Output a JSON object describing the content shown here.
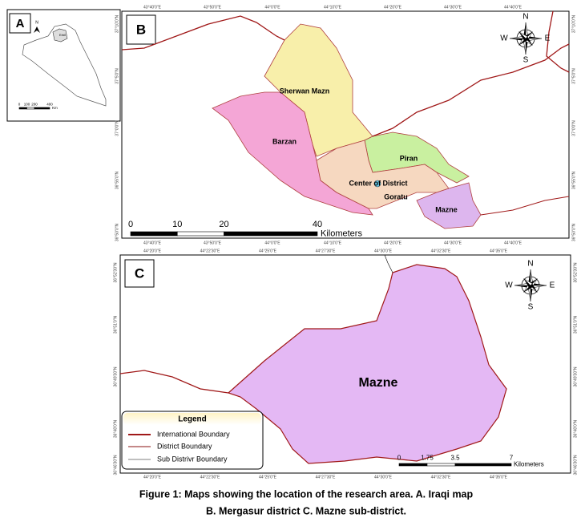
{
  "panel_a": {
    "label": "A",
    "north": "N",
    "city": "Erbil",
    "scale": [
      "0",
      "100",
      "200",
      "400"
    ],
    "scale_unit": "Km"
  },
  "panel_b": {
    "label": "B",
    "districts": [
      "Sherwan Mazn",
      "Barzan",
      "Piran",
      "Center of District",
      "Goratu",
      "Mazne"
    ],
    "compass": {
      "n": "N",
      "e": "E",
      "s": "S",
      "w": "W"
    },
    "scale": [
      "0",
      "10",
      "20",
      "40"
    ],
    "scale_unit": "Kilometers",
    "lon_labels": [
      "43°40'0\"E",
      "43°50'0\"E",
      "44°0'0\"E",
      "44°10'0\"E",
      "44°20'0\"E",
      "44°30'0\"E",
      "44°40'0\"E"
    ],
    "lat_labels": [
      "37°10'0\"N",
      "37°5'0\"N",
      "37°0'0\"N",
      "36°55'0\"N",
      "36°50'0\"N"
    ]
  },
  "panel_c": {
    "label": "C",
    "area": "Mazne",
    "compass": {
      "n": "N",
      "e": "E",
      "s": "S",
      "w": "W"
    },
    "legend": {
      "title": "Legend",
      "items": [
        "International Boundary",
        "District Boundary",
        "Sub Distrivr Boundary"
      ]
    },
    "scale": [
      "0",
      "1.75",
      "3.5",
      "7"
    ],
    "scale_unit": "Kilometers",
    "lon_labels": [
      "44°20'0\"E",
      "44°22'30\"E",
      "44°25'0\"E",
      "44°27'30\"E",
      "44°30'0\"E",
      "44°32'30\"E",
      "44°35'0\"E"
    ],
    "lat_labels": [
      "36°52'30\"N",
      "36°51'0\"N",
      "36°49'30\"N",
      "36°48'0\"N",
      "36°46'30\"N"
    ]
  },
  "caption": {
    "line1": "Figure 1: Maps showing the location of the research area. A. Iraqi map",
    "line2": "B. Mergasur district C. Mazne sub-district."
  }
}
